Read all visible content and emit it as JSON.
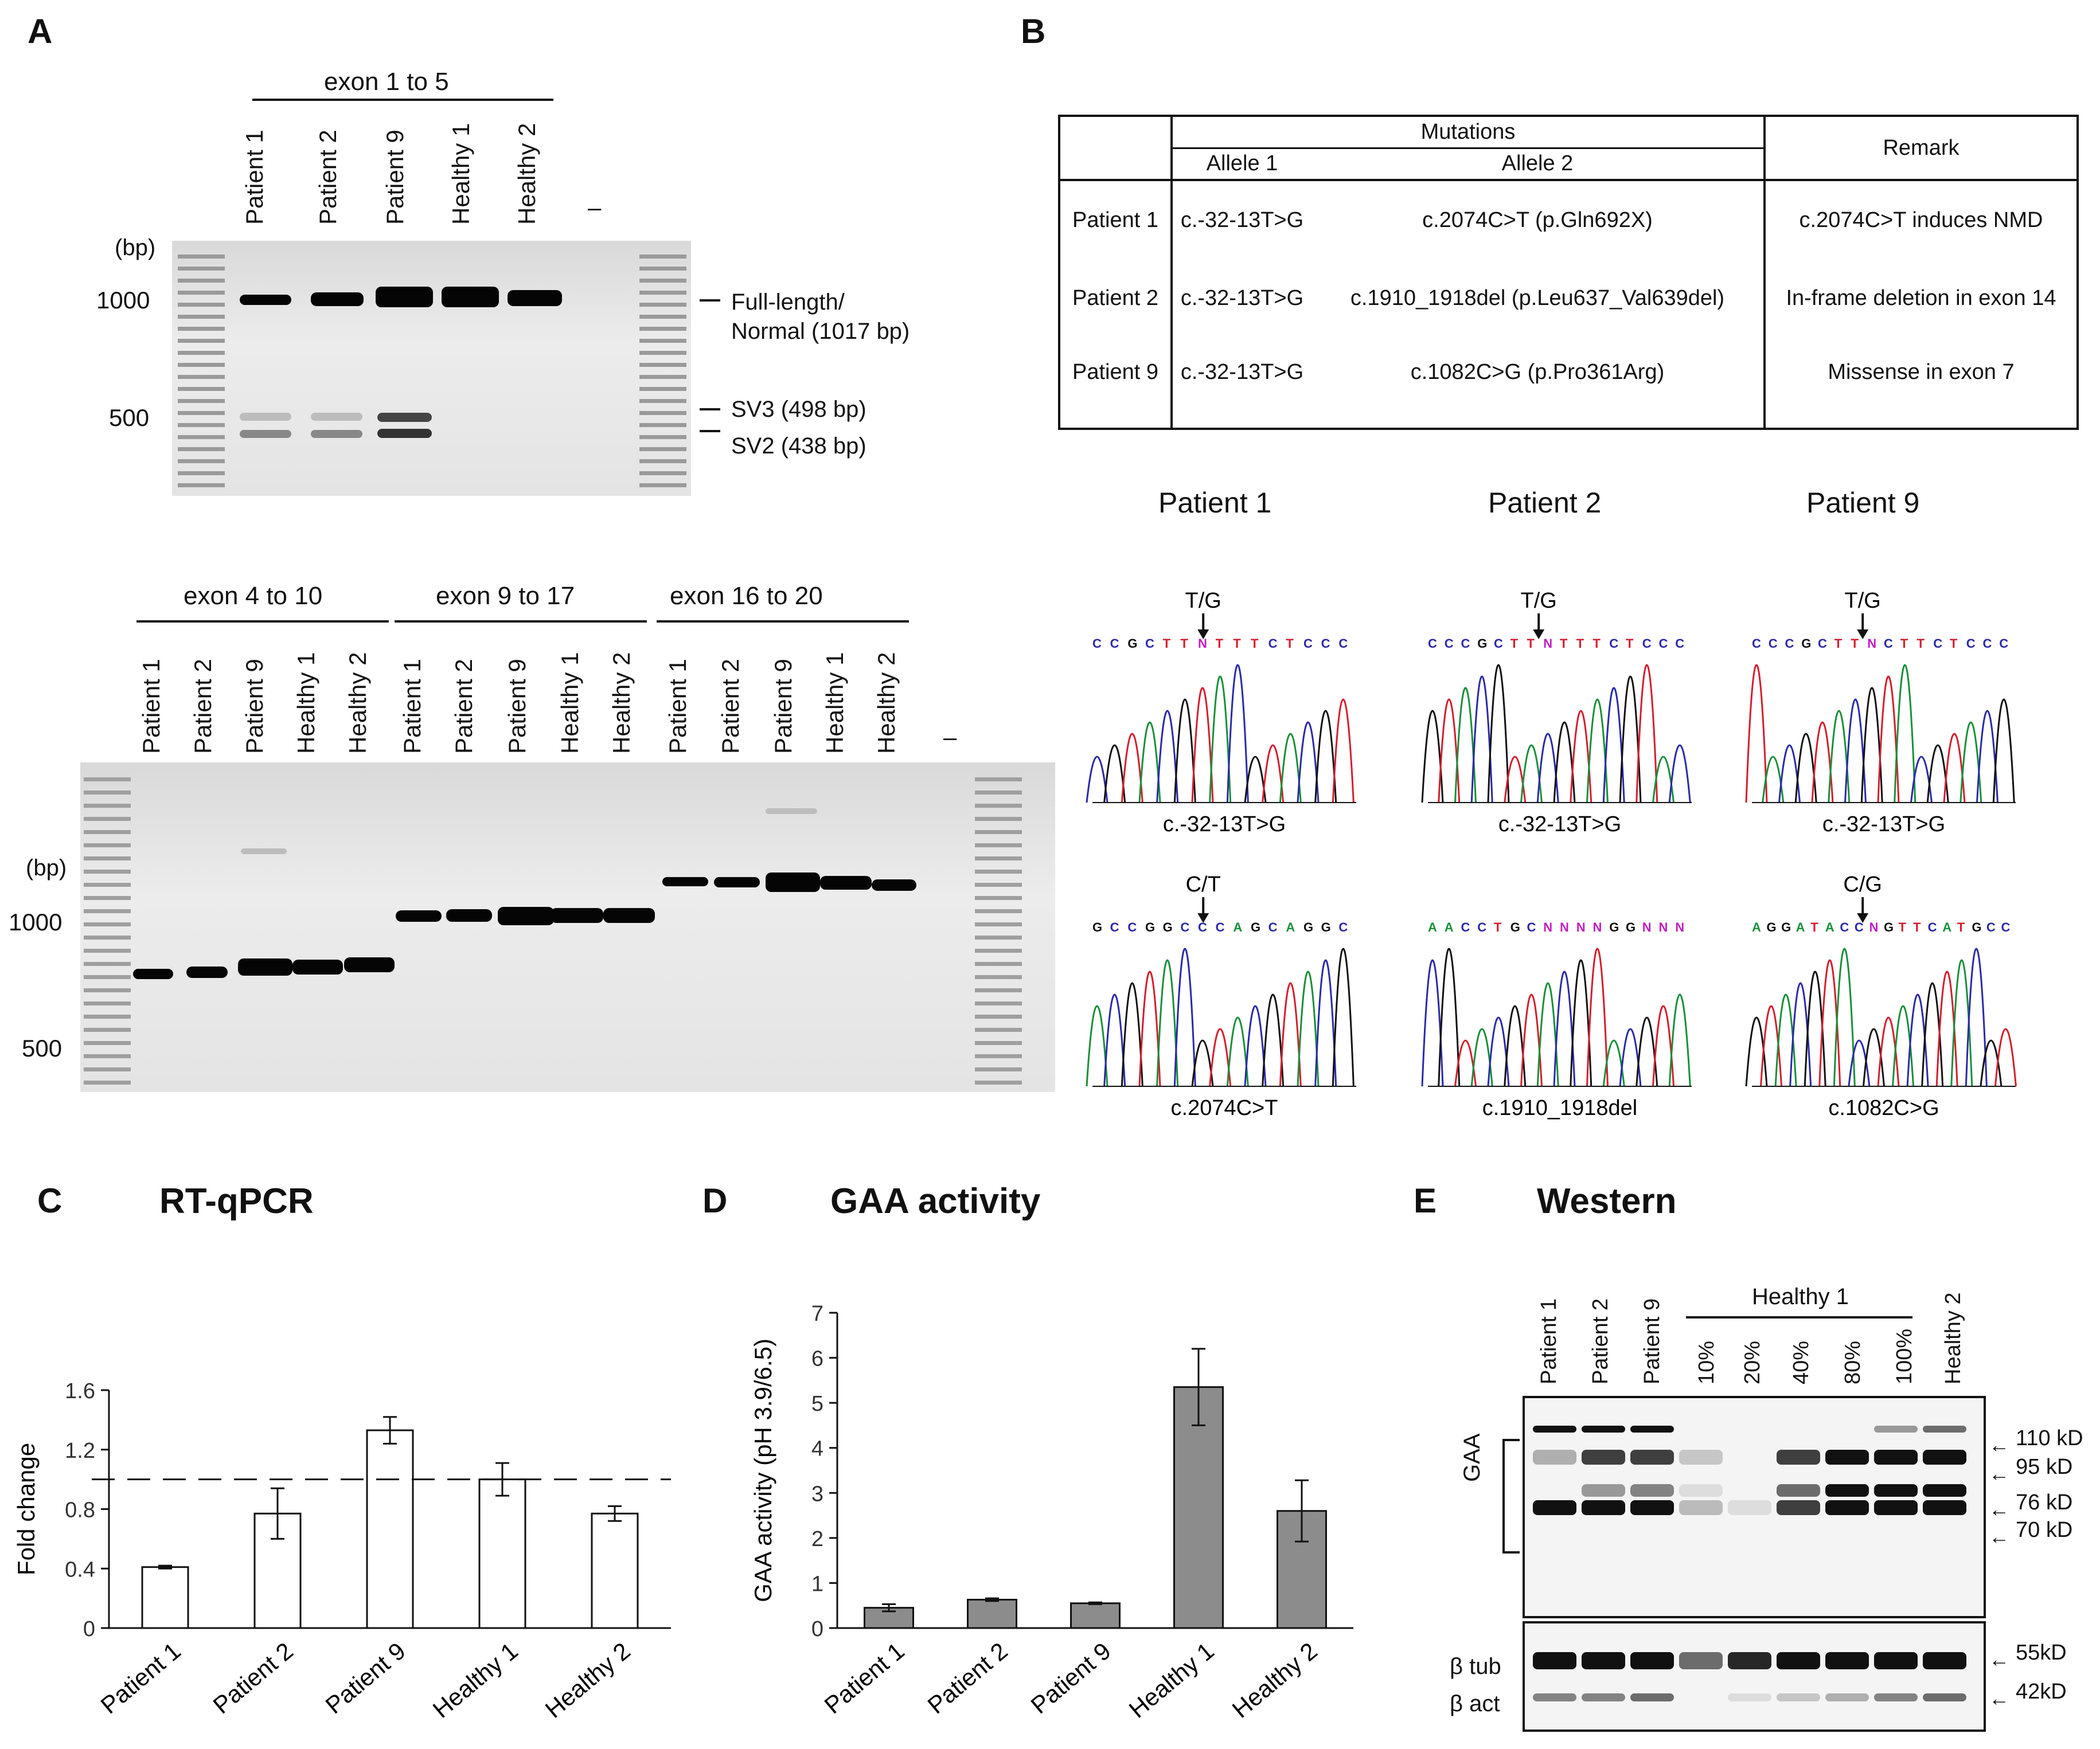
{
  "labels": {
    "A": "A",
    "B": "B",
    "C": "C",
    "D": "D",
    "E": "E"
  },
  "panelA": {
    "top": {
      "group": "exon 1 to  5",
      "lanes": [
        "Patient 1",
        "Patient 2",
        "Patient 9",
        "Healthy 1",
        "Healthy 2",
        "–"
      ],
      "bp": "(bp)",
      "m1000": "1000",
      "m500": "500",
      "ann": {
        "full1": "Full-length/",
        "full2": "Normal (1017 bp)",
        "sv3": "SV3 (498 bp)",
        "sv2": "SV2 (438 bp)"
      }
    },
    "bottom": {
      "groups": [
        "exon 4 to 10",
        "exon 9 to 17",
        "exon 16 to 20"
      ],
      "lanes": [
        "Patient 1",
        "Patient 2",
        "Patient 9",
        "Healthy 1",
        "Healthy 2",
        "Patient 1",
        "Patient 2",
        "Patient 9",
        "Healthy 1",
        "Healthy 2",
        "Patient 1",
        "Patient 2",
        "Patient 9",
        "Healthy 1",
        "Healthy 2",
        "–"
      ],
      "bp": "(bp)",
      "m1000": "1000",
      "m500": "500"
    }
  },
  "panelB": {
    "table": {
      "mutations": "Mutations",
      "allele1": "Allele 1",
      "allele2": "Allele 2",
      "remark": "Remark",
      "rows": [
        {
          "patient": "Patient 1",
          "a1": "c.-32-13T>G",
          "a2": "c.2074C>T (p.Gln692X)",
          "remark": "c.2074C>T induces NMD"
        },
        {
          "patient": "Patient 2",
          "a1": "c.-32-13T>G",
          "a2": "c.1910_1918del (p.Leu637_Val639del)",
          "remark": "In-frame deletion in exon 14"
        },
        {
          "patient": "Patient 9",
          "a1": "c.-32-13T>G",
          "a2": "c.1082C>G (p.Pro361Arg)",
          "remark": "Missense in exon 7"
        }
      ]
    },
    "headers": [
      "Patient 1",
      "Patient 2",
      "Patient 9"
    ],
    "chromatograms": [
      {
        "mark": "T/G",
        "seq": "CCGCTTNTTTCTCCC",
        "caption": "c.-32-13T>G"
      },
      {
        "mark": "T/G",
        "seq": "CCCGCTTNTTTCTCCC",
        "caption": "c.-32-13T>G"
      },
      {
        "mark": "T/G",
        "seq": "CCCGCTTNCTTCTCCC",
        "caption": "c.-32-13T>G"
      },
      {
        "mark": "C/T",
        "seq": "GCCGGCCCAGCAGGC",
        "caption": "c.2074C>T"
      },
      {
        "mark": "",
        "seq": "AACCTGCNNNNGGNNN",
        "caption": "c.1910_1918del"
      },
      {
        "mark": "C/G",
        "seq": "AGGATACCNGTTCATGCC",
        "caption": "c.1082C>G"
      }
    ]
  },
  "panelC": {
    "title": "RT-qPCR",
    "chart_data": {
      "type": "bar",
      "title": "RT-qPCR",
      "ylabel": "Fold change",
      "xlabel": "",
      "categories": [
        "Patient 1",
        "Patient 2",
        "Patient 9",
        "Healthy 1",
        "Healthy 2"
      ],
      "values": [
        0.41,
        0.77,
        1.33,
        1.0,
        0.77
      ],
      "errors": [
        0.01,
        0.17,
        0.09,
        0.11,
        0.05
      ],
      "ylim": [
        0,
        1.6
      ],
      "yticks": [
        "0",
        "0.4",
        "0.8",
        "1.2",
        "1.6"
      ],
      "reference_line": 1.0
    }
  },
  "panelD": {
    "title": "GAA activity",
    "chart_data": {
      "type": "bar",
      "title": "GAA activity",
      "ylabel": "GAA activity (pH 3.9/6.5)",
      "xlabel": "",
      "categories": [
        "Patient 1",
        "Patient 2",
        "Patient 9",
        "Healthy 1",
        "Healthy 2"
      ],
      "values": [
        0.45,
        0.63,
        0.55,
        5.35,
        2.6
      ],
      "errors": [
        0.08,
        0.03,
        0.02,
        0.85,
        0.68
      ],
      "ylim": [
        0,
        7
      ],
      "yticks": [
        "0",
        "1",
        "2",
        "3",
        "4",
        "5",
        "6",
        "7"
      ]
    }
  },
  "panelE": {
    "title": "Western",
    "lanes": [
      "Patient 1",
      "Patient 2",
      "Patient 9",
      "10%",
      "20%",
      "40%",
      "80%",
      "100%",
      "Healthy 2"
    ],
    "group": "Healthy 1",
    "gaa": "GAA",
    "btub": "β tub",
    "bact": "β act",
    "sizes": [
      "110 kD",
      "95 kD",
      "76 kD",
      "70 kD",
      "55kD",
      "42kD"
    ]
  }
}
